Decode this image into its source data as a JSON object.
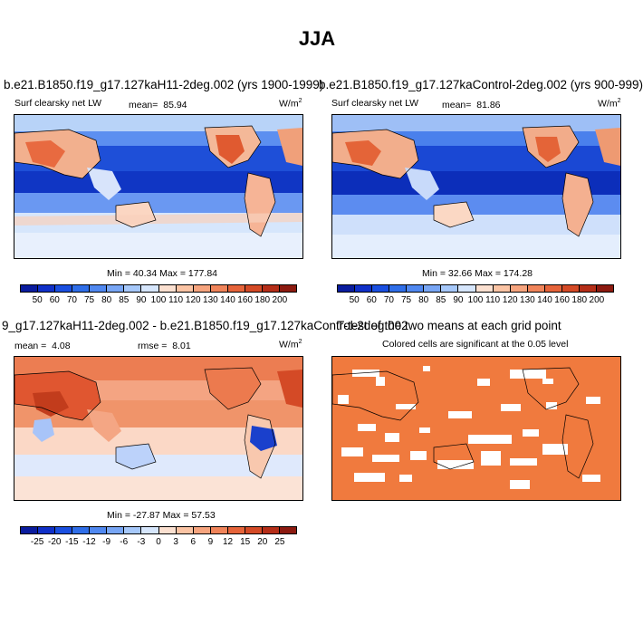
{
  "figure_title": "JJA",
  "panels": [
    {
      "title": "b.e21.B1850.f19_g17.127kaH11-2deg.002 (yrs 1900-1999)",
      "variable": "Surf clearsky net LW",
      "mean_label": "mean=",
      "mean_value": "85.94",
      "units": "W/m",
      "units_sup": "2",
      "minmax": "Min =  40.34 Max = 177.84"
    },
    {
      "title": "b.e21.B1850.f19_g17.127kaControl-2deg.002 (yrs 900-999)",
      "variable": "Surf clearsky net LW",
      "mean_label": "mean=",
      "mean_value": "81.86",
      "units": "W/m",
      "units_sup": "2",
      "minmax": "Min =  32.66 Max = 174.28"
    },
    {
      "title": "9_g17.127kaH11-2deg.002 - b.e21.B1850.f19_g17.127kaControl-2deg.002",
      "mean_label": "mean =",
      "mean_value": "4.08",
      "rmse_label": "rmse =",
      "rmse_value": "8.01",
      "units": "W/m",
      "units_sup": "2",
      "minmax": "Min = -27.87 Max =  57.53"
    },
    {
      "title": "T-test of the two means at each grid point",
      "subtitle": "Colored cells are significant at the 0.05 level"
    }
  ],
  "colorbar_abs": {
    "ticks": [
      "50",
      "60",
      "70",
      "75",
      "80",
      "85",
      "90",
      "100",
      "110",
      "120",
      "130",
      "140",
      "160",
      "180",
      "200"
    ],
    "colors": [
      "#0a1c9e",
      "#1030c8",
      "#1a4fe0",
      "#2f6ee8",
      "#5088f0",
      "#78a6f5",
      "#a6c8fa",
      "#d6e6fc",
      "#fbe0d0",
      "#fbc4a4",
      "#f6a47e",
      "#f0845a",
      "#e6643a",
      "#d44a26",
      "#b52e18",
      "#8c1a10"
    ]
  },
  "colorbar_diff": {
    "ticks": [
      "-25",
      "-20",
      "-15",
      "-12",
      "-9",
      "-6",
      "-3",
      "0",
      "3",
      "6",
      "9",
      "12",
      "15",
      "20",
      "25"
    ],
    "colors": [
      "#0a1c9e",
      "#1030c8",
      "#1a4fe0",
      "#2f6ee8",
      "#5088f0",
      "#78a6f5",
      "#a6c8fa",
      "#d6e6fc",
      "#fbe0d0",
      "#fbc4a4",
      "#f6a47e",
      "#f0845a",
      "#e6643a",
      "#d44a26",
      "#b52e18",
      "#8c1a10"
    ]
  }
}
